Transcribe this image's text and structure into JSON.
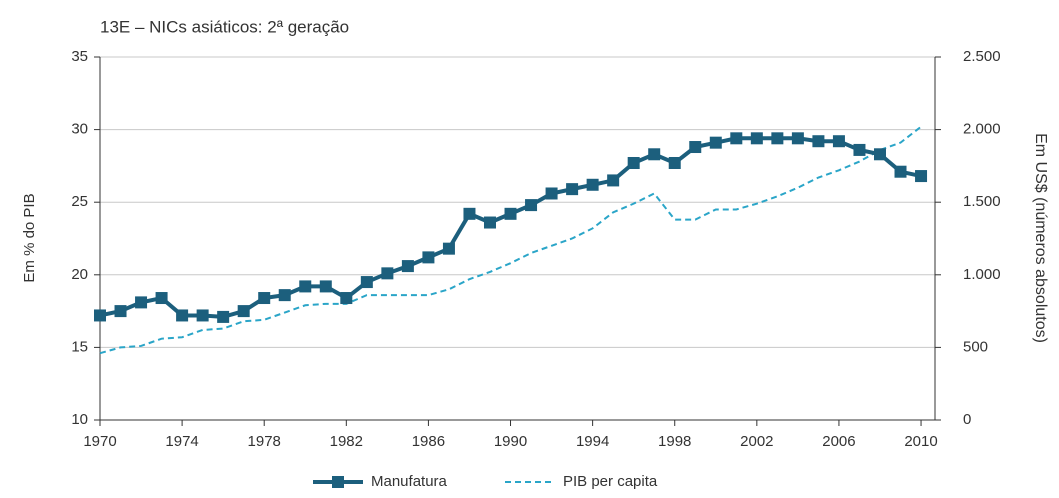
{
  "chart_data": {
    "type": "line",
    "title": "13E – NICs asiáticos: 2ª geração",
    "y_label": "Em % do PIB",
    "y2_label": "Em US$ (números absolutos)",
    "x": [
      1970,
      1971,
      1972,
      1973,
      1974,
      1975,
      1976,
      1977,
      1978,
      1979,
      1980,
      1981,
      1982,
      1983,
      1984,
      1985,
      1986,
      1987,
      1988,
      1989,
      1990,
      1991,
      1992,
      1993,
      1994,
      1995,
      1996,
      1997,
      1998,
      1999,
      2000,
      2001,
      2002,
      2003,
      2004,
      2005,
      2006,
      2007,
      2008,
      2009,
      2010
    ],
    "xlim": [
      1970,
      2010.68
    ],
    "xticks": [
      1970,
      1974,
      1978,
      1982,
      1986,
      1990,
      1994,
      1998,
      2002,
      2006,
      2010
    ],
    "ylim": [
      10,
      35
    ],
    "yticks": [
      10,
      15,
      20,
      25,
      30,
      35
    ],
    "y2lim": [
      0,
      2500
    ],
    "y2ticks": [
      0,
      500,
      {
        "value": 1000,
        "label": "1.000"
      },
      {
        "value": 1500,
        "label": "1.500"
      },
      {
        "value": 2000,
        "label": "2.000"
      },
      {
        "value": 2500,
        "label": "2.500"
      }
    ],
    "grid": true,
    "legend": "bottom",
    "series": [
      {
        "name": "Manufatura",
        "color": "#1c5f7d",
        "marker": "square",
        "values": [
          17.2,
          17.5,
          18.1,
          18.4,
          17.2,
          17.2,
          17.1,
          17.5,
          18.4,
          18.6,
          19.2,
          19.2,
          18.4,
          19.5,
          20.1,
          20.6,
          21.2,
          21.8,
          24.2,
          23.6,
          24.2,
          24.8,
          25.6,
          25.9,
          26.2,
          26.5,
          27.7,
          28.3,
          27.7,
          28.8,
          29.1,
          29.4,
          29.4,
          29.4,
          29.4,
          29.2,
          29.2,
          28.6,
          28.3,
          27.1,
          26.8
        ]
      },
      {
        "name": "PIB per capita",
        "color": "#2aa5c8",
        "dashed": true,
        "axis": "y2",
        "values": [
          460,
          500,
          510,
          560,
          570,
          620,
          630,
          680,
          690,
          740,
          790,
          800,
          800,
          860,
          860,
          860,
          860,
          900,
          970,
          1020,
          1080,
          1150,
          1200,
          1250,
          1320,
          1430,
          1490,
          1560,
          1380,
          1380,
          1450,
          1450,
          1490,
          1540,
          1600,
          1670,
          1720,
          1780,
          1860,
          1910,
          2020
        ]
      }
    ]
  }
}
